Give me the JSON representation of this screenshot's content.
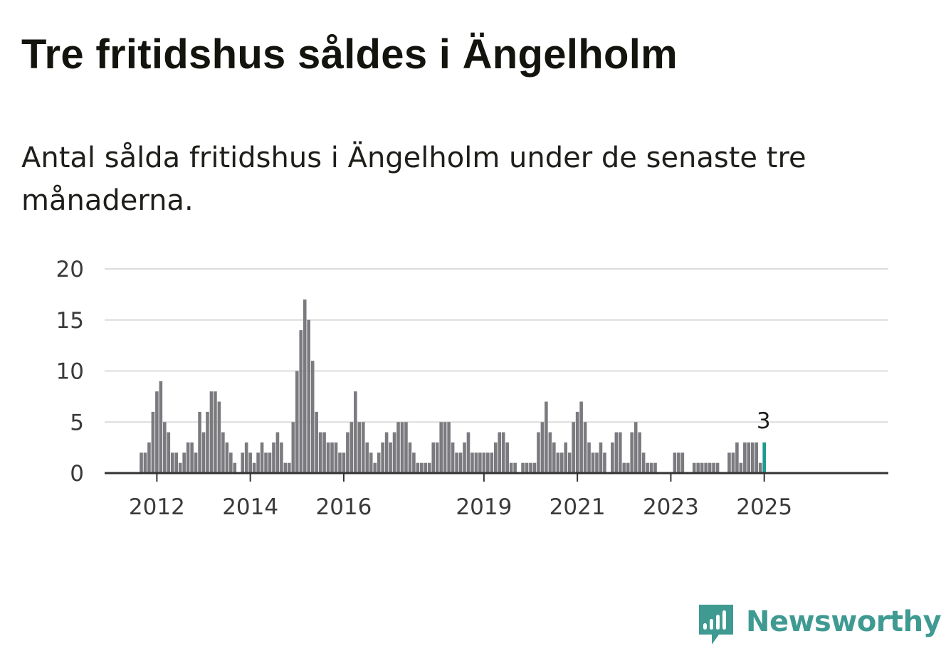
{
  "title": "Tre fritidshus såldes i Ängelholm",
  "subtitle": "Antal sålda fritidshus i Ängelholm under de senaste tre månaderna.",
  "brand": {
    "name": "Newsworthy",
    "icon": "newsworthy-logo-icon"
  },
  "colors": {
    "bar": "#7b7a7f",
    "highlight": "#1e9a8e",
    "grid": "#dcdcdc",
    "axis": "#333333",
    "brand": "#3f9a92"
  },
  "chart_data": {
    "type": "bar",
    "title": "Tre fritidshus såldes i Ängelholm",
    "subtitle": "Antal sålda fritidshus i Ängelholm under de senaste tre månaderna.",
    "xlabel": "",
    "ylabel": "",
    "ylim": [
      0,
      20
    ],
    "yticks": [
      0,
      5,
      10,
      15,
      20
    ],
    "xticks": [
      "2012",
      "2014",
      "2016",
      "2019",
      "2021",
      "2023",
      "2025"
    ],
    "grid": true,
    "legend": "none",
    "start": "2011-09",
    "frequency": "monthly (rolling three-month total)",
    "last_label": "3",
    "values": [
      2,
      2,
      3,
      6,
      8,
      9,
      5,
      4,
      2,
      2,
      1,
      2,
      3,
      3,
      2,
      6,
      4,
      6,
      8,
      8,
      7,
      4,
      3,
      2,
      1,
      0,
      2,
      3,
      2,
      1,
      2,
      3,
      2,
      2,
      3,
      4,
      3,
      1,
      1,
      5,
      10,
      14,
      17,
      15,
      11,
      6,
      4,
      4,
      3,
      3,
      3,
      2,
      2,
      4,
      5,
      8,
      5,
      5,
      3,
      2,
      1,
      2,
      3,
      4,
      3,
      4,
      5,
      5,
      5,
      3,
      2,
      1,
      1,
      1,
      1,
      3,
      3,
      5,
      5,
      5,
      3,
      2,
      2,
      3,
      4,
      2,
      2,
      2,
      2,
      2,
      2,
      3,
      4,
      4,
      3,
      1,
      1,
      0,
      1,
      1,
      1,
      1,
      4,
      5,
      7,
      4,
      3,
      2,
      2,
      3,
      2,
      5,
      6,
      7,
      5,
      3,
      2,
      2,
      3,
      2,
      0,
      3,
      4,
      4,
      1,
      1,
      4,
      5,
      4,
      2,
      1,
      1,
      1,
      0,
      0,
      0,
      0,
      2,
      2,
      2,
      0,
      0,
      1,
      1,
      1,
      1,
      1,
      1,
      1,
      0,
      0,
      2,
      2,
      3,
      1,
      3,
      3,
      3,
      3,
      1,
      3
    ]
  }
}
